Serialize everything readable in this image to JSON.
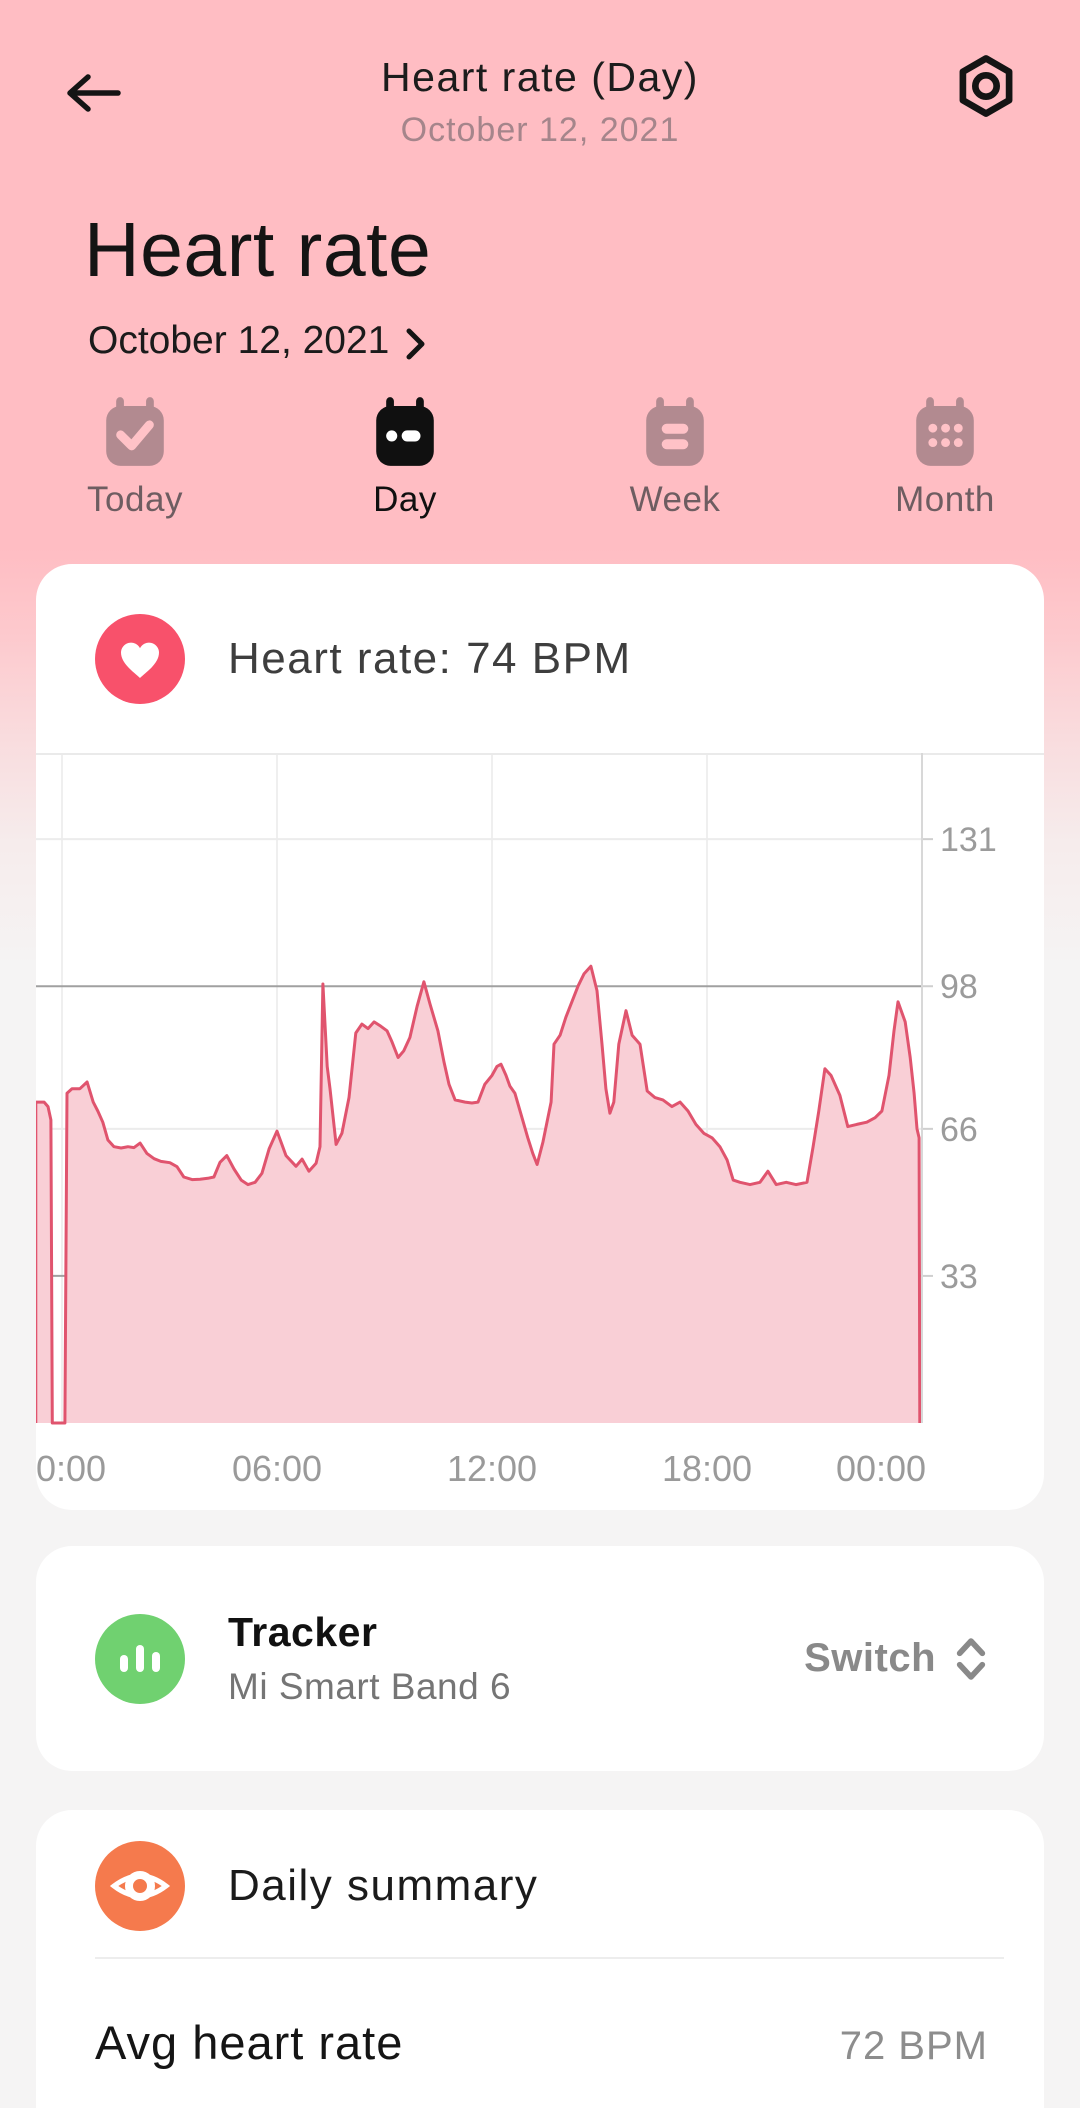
{
  "header": {
    "title": "Heart rate (Day)",
    "subtitle": "October 12, 2021"
  },
  "page": {
    "title": "Heart rate",
    "date": "October 12, 2021"
  },
  "tabs": [
    {
      "id": "today",
      "label": "Today",
      "icon": "calendar-check-icon",
      "active": false
    },
    {
      "id": "day",
      "label": "Day",
      "icon": "calendar-day-icon",
      "active": true
    },
    {
      "id": "week",
      "label": "Week",
      "icon": "calendar-week-icon",
      "active": false
    },
    {
      "id": "month",
      "label": "Month",
      "icon": "calendar-month-icon",
      "active": false
    }
  ],
  "heart_rate_card": {
    "label": "Heart rate: 74 BPM",
    "icon": "heart-icon",
    "icon_color": "#f8516b"
  },
  "tracker_card": {
    "title": "Tracker",
    "device": "Mi Smart Band 6",
    "action_label": "Switch",
    "icon": "bar-chart-icon",
    "icon_color": "#70d170"
  },
  "summary_card": {
    "title": "Daily summary",
    "icon": "eye-icon",
    "icon_color": "#f57a4d",
    "rows": [
      {
        "label": "Avg heart rate",
        "value": "72 BPM"
      }
    ]
  },
  "colors": {
    "background_top": "#ffbdc3",
    "background_bottom": "#f5f4f4",
    "card": "#ffffff",
    "accent_red": "#f8516b",
    "chart_line": "#e0546e",
    "chart_fill": "#f9cfd6",
    "grid_light": "#ececec",
    "grid_strong": "#a0a0a0",
    "axis_text": "#9b9b9b"
  },
  "chart_data": {
    "type": "area",
    "title": "Heart rate (BPM) over the day, October 12, 2021",
    "x_unit": "hour_of_day",
    "x_range_hours": [
      -0.73,
      23.94
    ],
    "y_range": [
      0,
      150.7
    ],
    "y_axis_side": "right",
    "grid": true,
    "legend": "none",
    "line_color": "#e0546e",
    "fill_color": "#f9cfd6",
    "gap_value": 0,
    "x_ticks": [
      {
        "label": "0:00",
        "hour": 0
      },
      {
        "label": "06:00",
        "hour": 6
      },
      {
        "label": "12:00",
        "hour": 12
      },
      {
        "label": "18:00",
        "hour": 18
      },
      {
        "label": "00:00",
        "hour": 24
      }
    ],
    "y_ticks": [
      {
        "value": 131,
        "strong": false
      },
      {
        "value": 98,
        "strong": true
      },
      {
        "value": 66,
        "strong": false
      },
      {
        "value": 33,
        "strong": true
      }
    ],
    "points": [
      [
        -0.73,
        72
      ],
      [
        -0.5,
        72
      ],
      [
        -0.39,
        71
      ],
      [
        -0.31,
        68
      ],
      [
        -0.27,
        0
      ],
      [
        0.08,
        0
      ],
      [
        0.14,
        74
      ],
      [
        0.28,
        75
      ],
      [
        0.5,
        75
      ],
      [
        0.7,
        76.5
      ],
      [
        0.87,
        72
      ],
      [
        1.0,
        70
      ],
      [
        1.14,
        67.5
      ],
      [
        1.28,
        63.5
      ],
      [
        1.45,
        62
      ],
      [
        1.65,
        61.7
      ],
      [
        1.84,
        62
      ],
      [
        2.01,
        61.8
      ],
      [
        2.18,
        62.8
      ],
      [
        2.37,
        60.5
      ],
      [
        2.57,
        59.3
      ],
      [
        2.76,
        58.7
      ],
      [
        3.01,
        58.4
      ],
      [
        3.21,
        57.5
      ],
      [
        3.4,
        55.2
      ],
      [
        3.63,
        54.6
      ],
      [
        3.85,
        54.7
      ],
      [
        4.07,
        54.9
      ],
      [
        4.24,
        55.2
      ],
      [
        4.41,
        58.5
      ],
      [
        4.6,
        60
      ],
      [
        4.8,
        57
      ],
      [
        5.0,
        54.5
      ],
      [
        5.19,
        53.5
      ],
      [
        5.39,
        54
      ],
      [
        5.58,
        56
      ],
      [
        5.78,
        61.5
      ],
      [
        6.0,
        65.5
      ],
      [
        6.25,
        60
      ],
      [
        6.53,
        57.6
      ],
      [
        6.7,
        59.2
      ],
      [
        6.89,
        56.5
      ],
      [
        7.09,
        58.3
      ],
      [
        7.2,
        62
      ],
      [
        7.28,
        98.5
      ],
      [
        7.4,
        80
      ],
      [
        7.48,
        75
      ],
      [
        7.65,
        62.5
      ],
      [
        7.81,
        65
      ],
      [
        8.01,
        73
      ],
      [
        8.2,
        87.5
      ],
      [
        8.37,
        89.5
      ],
      [
        8.54,
        88.5
      ],
      [
        8.71,
        90
      ],
      [
        8.9,
        89
      ],
      [
        9.07,
        88
      ],
      [
        9.21,
        85.5
      ],
      [
        9.38,
        82
      ],
      [
        9.54,
        83.5
      ],
      [
        9.71,
        86.5
      ],
      [
        9.91,
        93.5
      ],
      [
        10.1,
        99
      ],
      [
        10.27,
        94
      ],
      [
        10.49,
        88
      ],
      [
        10.66,
        81
      ],
      [
        10.8,
        76
      ],
      [
        10.97,
        72.5
      ],
      [
        11.25,
        72
      ],
      [
        11.44,
        71.8
      ],
      [
        11.61,
        72
      ],
      [
        11.8,
        76
      ],
      [
        12.0,
        78
      ],
      [
        12.14,
        80
      ],
      [
        12.25,
        80.5
      ],
      [
        12.39,
        78
      ],
      [
        12.5,
        75.6
      ],
      [
        12.64,
        74
      ],
      [
        12.84,
        68.4
      ],
      [
        13.0,
        64
      ],
      [
        13.14,
        60.5
      ],
      [
        13.26,
        58
      ],
      [
        13.42,
        63
      ],
      [
        13.56,
        68.5
      ],
      [
        13.65,
        72
      ],
      [
        13.73,
        85
      ],
      [
        13.9,
        87
      ],
      [
        14.06,
        91
      ],
      [
        14.23,
        94.5
      ],
      [
        14.4,
        98
      ],
      [
        14.57,
        100.8
      ],
      [
        14.76,
        102.5
      ],
      [
        14.93,
        97
      ],
      [
        15.07,
        85
      ],
      [
        15.18,
        75
      ],
      [
        15.29,
        69.5
      ],
      [
        15.4,
        72
      ],
      [
        15.54,
        85
      ],
      [
        15.74,
        92.5
      ],
      [
        15.91,
        87
      ],
      [
        16.13,
        85
      ],
      [
        16.33,
        74.5
      ],
      [
        16.55,
        73
      ],
      [
        16.77,
        72.5
      ],
      [
        17.02,
        71
      ],
      [
        17.25,
        72
      ],
      [
        17.47,
        70
      ],
      [
        17.69,
        67
      ],
      [
        17.91,
        65
      ],
      [
        18.14,
        64
      ],
      [
        18.36,
        62
      ],
      [
        18.56,
        59
      ],
      [
        18.73,
        54.5
      ],
      [
        18.92,
        54
      ],
      [
        19.2,
        53.5
      ],
      [
        19.48,
        54
      ],
      [
        19.7,
        56.5
      ],
      [
        19.93,
        53.5
      ],
      [
        20.21,
        54
      ],
      [
        20.48,
        53.5
      ],
      [
        20.79,
        54
      ],
      [
        20.96,
        62
      ],
      [
        21.12,
        70
      ],
      [
        21.29,
        79.5
      ],
      [
        21.46,
        78
      ],
      [
        21.71,
        73.5
      ],
      [
        21.93,
        66.5
      ],
      [
        22.18,
        67
      ],
      [
        22.46,
        67.5
      ],
      [
        22.69,
        68.5
      ],
      [
        22.88,
        70
      ],
      [
        23.08,
        78
      ],
      [
        23.22,
        88
      ],
      [
        23.33,
        94.5
      ],
      [
        23.53,
        90
      ],
      [
        23.67,
        82
      ],
      [
        23.78,
        74
      ],
      [
        23.86,
        66
      ],
      [
        23.92,
        64
      ],
      [
        23.94,
        0
      ]
    ]
  }
}
